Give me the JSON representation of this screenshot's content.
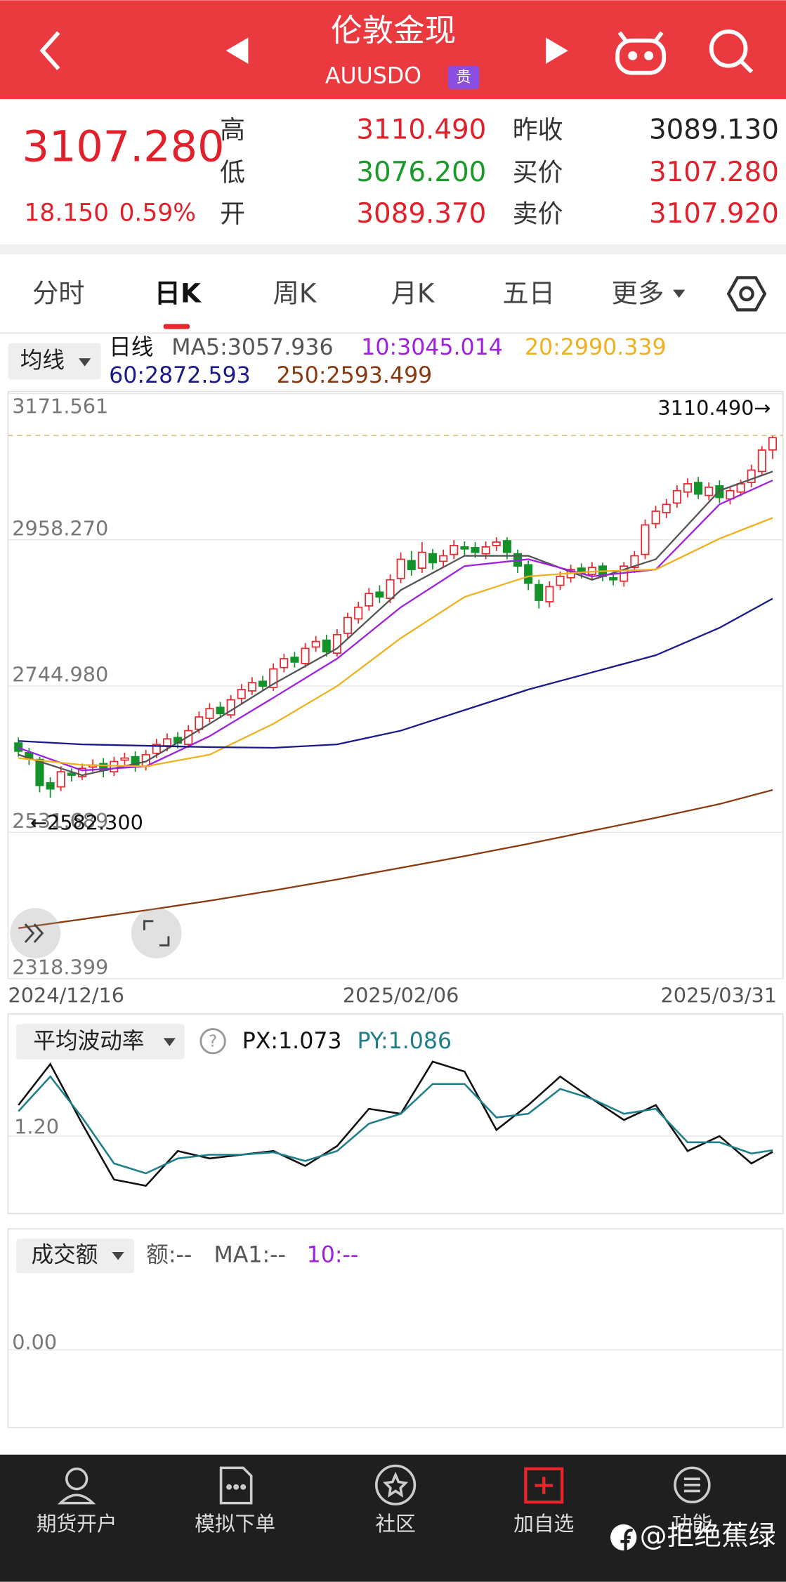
{
  "header": {
    "title": "伦敦金现",
    "symbol": "AUUSDO",
    "badge": "贵"
  },
  "quote": {
    "last": "3107.280",
    "change": "18.150",
    "change_percent": "0.59%",
    "rows": [
      [
        "高",
        "3110.490",
        "昨收",
        "3089.130"
      ],
      [
        "低",
        "3076.200",
        "买价",
        "3107.280"
      ],
      [
        "开",
        "3089.370",
        "卖价",
        "3107.920"
      ]
    ]
  },
  "tabs": [
    "分时",
    "日K",
    "周K",
    "月K",
    "五日",
    "更多"
  ],
  "chart_data": [
    {
      "type": "candlestick",
      "button": "均线",
      "period": "日线",
      "categories": [
        "2024/12/16",
        null,
        null,
        null,
        null,
        null,
        null,
        null,
        null,
        null,
        null,
        null,
        null,
        null,
        null,
        null,
        null,
        null,
        null,
        null,
        null,
        null,
        null,
        null,
        null,
        null,
        null,
        null,
        null,
        null,
        null,
        null,
        null,
        null,
        null,
        null,
        "2025/02/06",
        null,
        null,
        null,
        null,
        null,
        null,
        null,
        null,
        null,
        null,
        null,
        null,
        null,
        null,
        null,
        null,
        null,
        null,
        null,
        null,
        null,
        null,
        null,
        null,
        null,
        null,
        null,
        null,
        null,
        null,
        null,
        null,
        null,
        null,
        "2025/03/31"
      ],
      "open": [
        2662,
        2648,
        2638,
        2604,
        2598,
        2618,
        2613,
        2627,
        2632,
        2620,
        2637,
        2642,
        2628,
        2647,
        2658,
        2670,
        2660,
        2682,
        2698,
        2714,
        2703,
        2727,
        2738,
        2752,
        2743,
        2772,
        2787,
        2778,
        2802,
        2812,
        2793,
        2822,
        2843,
        2862,
        2882,
        2873,
        2902,
        2928,
        2917,
        2938,
        2927,
        2937,
        2948,
        2947,
        2938,
        2950,
        2957,
        2938,
        2922,
        2893,
        2868,
        2892,
        2903,
        2917,
        2908,
        2920,
        2903,
        2898,
        2918,
        2937,
        2982,
        2998,
        3012,
        3028,
        3042,
        3023,
        3037,
        3018,
        3028,
        3042,
        3058,
        3089.37
      ],
      "high": [
        2670,
        2655,
        2642,
        2612,
        2628,
        2625,
        2632,
        2638,
        2640,
        2642,
        2648,
        2650,
        2652,
        2668,
        2676,
        2678,
        2688,
        2708,
        2720,
        2722,
        2732,
        2748,
        2758,
        2760,
        2778,
        2792,
        2795,
        2808,
        2818,
        2820,
        2828,
        2852,
        2868,
        2888,
        2892,
        2908,
        2940,
        2942,
        2955,
        2945,
        2944,
        2958,
        2956,
        2955,
        2956,
        2962,
        2962,
        2944,
        2928,
        2900,
        2898,
        2912,
        2922,
        2924,
        2926,
        2925,
        2912,
        2926,
        2942,
        2988,
        3008,
        3018,
        3038,
        3048,
        3050,
        3042,
        3045,
        3036,
        3046,
        3068,
        3095,
        3110.49
      ],
      "low": [
        2642,
        2630,
        2590,
        2582.3,
        2592,
        2606,
        2608,
        2620,
        2612,
        2614,
        2630,
        2620,
        2622,
        2640,
        2650,
        2654,
        2655,
        2676,
        2692,
        2698,
        2698,
        2720,
        2732,
        2738,
        2738,
        2765,
        2772,
        2772,
        2795,
        2788,
        2788,
        2815,
        2836,
        2855,
        2866,
        2866,
        2895,
        2906,
        2910,
        2915,
        2918,
        2930,
        2936,
        2932,
        2930,
        2942,
        2930,
        2910,
        2885,
        2858,
        2860,
        2885,
        2896,
        2902,
        2900,
        2898,
        2892,
        2890,
        2910,
        2930,
        2975,
        2990,
        3005,
        3020,
        3018,
        3016,
        3012,
        3010,
        3022,
        3035,
        3052,
        3076.2
      ],
      "close": [
        2650,
        2640,
        2600,
        2595,
        2620,
        2615,
        2625,
        2630,
        2622,
        2635,
        2640,
        2630,
        2645,
        2660,
        2668,
        2662,
        2680,
        2700,
        2712,
        2705,
        2725,
        2740,
        2750,
        2745,
        2770,
        2785,
        2780,
        2800,
        2810,
        2795,
        2820,
        2845,
        2860,
        2880,
        2875,
        2900,
        2930,
        2915,
        2940,
        2925,
        2935,
        2950,
        2945,
        2940,
        2948,
        2955,
        2940,
        2920,
        2895,
        2870,
        2890,
        2905,
        2915,
        2910,
        2918,
        2905,
        2900,
        2920,
        2935,
        2980,
        3000,
        3010,
        3030,
        3040,
        3025,
        3035,
        3020,
        3030,
        3040,
        3060,
        3089.13,
        3107.28
      ],
      "up_color": "#e8262d",
      "down_color": "#14922a",
      "ylim": [
        2318.399,
        3171.561
      ],
      "yticks": [
        2318.399,
        2531.689,
        {
          "value": 2744.98,
          "label": "2744.980"
        },
        {
          "value": 2958.27,
          "label": "2958.270"
        },
        3171.561
      ],
      "grid": true,
      "high_label": "3110.490→",
      "low_label": "←2582.300",
      "series": [
        {
          "name": "MA5:3057.936",
          "color": "#555555",
          "x": [
            0,
            6,
            12,
            18,
            24,
            30,
            36,
            42,
            48,
            54,
            60,
            66,
            71
          ],
          "values": [
            2645,
            2615,
            2635,
            2690,
            2748,
            2800,
            2885,
            2935,
            2935,
            2900,
            2930,
            3030,
            3057.936
          ]
        },
        {
          "name": "10:3045.014",
          "color": "#a020e0",
          "x": [
            0,
            6,
            12,
            18,
            24,
            30,
            36,
            42,
            48,
            54,
            60,
            66,
            71
          ],
          "values": [
            2655,
            2622,
            2628,
            2672,
            2728,
            2785,
            2860,
            2920,
            2930,
            2905,
            2915,
            3010,
            3045.014
          ]
        },
        {
          "name": "20:2990.339",
          "color": "#f0b020",
          "x": [
            0,
            6,
            12,
            18,
            24,
            30,
            36,
            42,
            48,
            54,
            60,
            66,
            71
          ],
          "values": [
            2640,
            2630,
            2628,
            2645,
            2690,
            2745,
            2815,
            2875,
            2905,
            2912,
            2915,
            2960,
            2990.339
          ]
        },
        {
          "name": "60:2872.593",
          "color": "#1a1a8c",
          "x": [
            0,
            6,
            12,
            18,
            24,
            30,
            36,
            42,
            48,
            54,
            60,
            66,
            71
          ],
          "values": [
            2665,
            2660,
            2658,
            2656,
            2655,
            2660,
            2680,
            2710,
            2740,
            2765,
            2790,
            2830,
            2872.593
          ]
        },
        {
          "name": "250:2593.499",
          "color": "#8b3a10",
          "x": [
            0,
            6,
            12,
            18,
            24,
            30,
            36,
            42,
            48,
            54,
            60,
            66,
            71
          ],
          "values": [
            2392,
            2405,
            2418,
            2432,
            2447,
            2463,
            2480,
            2497,
            2515,
            2534,
            2553,
            2573,
            2593.499
          ]
        }
      ]
    },
    {
      "type": "line",
      "button": "平均波动率",
      "help": "?",
      "x": [
        0,
        3,
        6,
        9,
        12,
        15,
        18,
        21,
        24,
        27,
        30,
        33,
        36,
        39,
        42,
        45,
        48,
        51,
        54,
        57,
        60,
        63,
        66,
        69,
        71
      ],
      "ylim": [
        0.6,
        1.9
      ],
      "yticks": [
        {
          "value": 1.2,
          "label": "1.20"
        }
      ],
      "grid": true,
      "series": [
        {
          "name": "PX:1.073",
          "color": "#111111",
          "values": [
            1.45,
            1.78,
            1.3,
            0.85,
            0.8,
            1.08,
            1.02,
            1.05,
            1.08,
            0.96,
            1.12,
            1.42,
            1.38,
            1.8,
            1.72,
            1.25,
            1.45,
            1.68,
            1.5,
            1.33,
            1.45,
            1.08,
            1.2,
            0.98,
            1.073
          ]
        },
        {
          "name": "PY:1.086",
          "color": "#1f7f8a",
          "values": [
            1.4,
            1.68,
            1.35,
            0.98,
            0.9,
            1.02,
            1.05,
            1.05,
            1.07,
            1.0,
            1.08,
            1.3,
            1.38,
            1.62,
            1.62,
            1.35,
            1.38,
            1.58,
            1.5,
            1.38,
            1.42,
            1.15,
            1.15,
            1.06,
            1.086
          ]
        }
      ]
    },
    {
      "type": "bar",
      "button": "成交额",
      "legend": [
        "额:--",
        "MA1:--",
        "10:--"
      ],
      "yticks": [
        {
          "value": 0,
          "label": "0.00"
        }
      ]
    }
  ],
  "nav": [
    "期货开户",
    "模拟下单",
    "社区",
    "加自选",
    "功能"
  ],
  "watermark": "@拒绝蕉绿"
}
